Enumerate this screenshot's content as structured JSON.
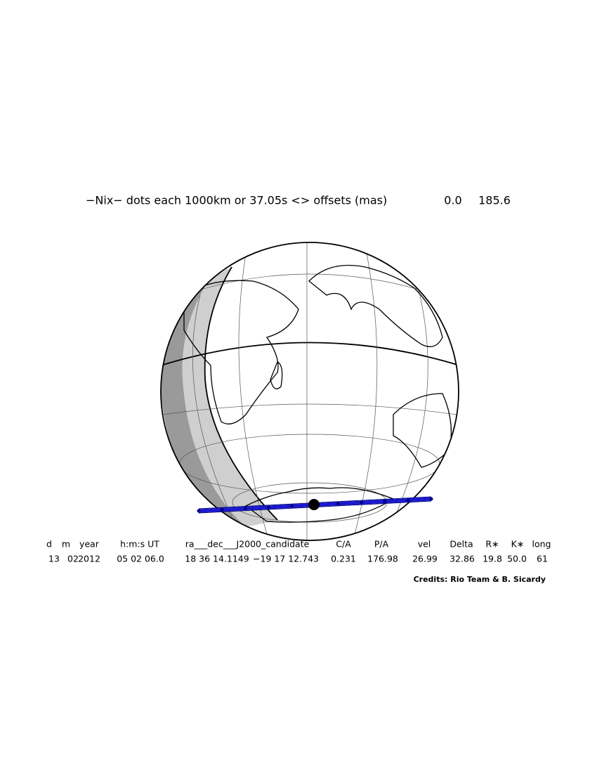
{
  "title": "−Nix− dots each 1000km or 37.05s <> offsets (mas)",
  "offsets": [
    "0.0",
    "185.6"
  ],
  "table": {
    "header": [
      "d",
      "m",
      "year",
      "h:m:s UT",
      "ra___dec___J2000_candidate",
      "C/A",
      "P/A",
      "vel",
      "Delta",
      "R∗",
      "K∗",
      "long"
    ],
    "values": [
      "13",
      "02",
      "2012",
      "05 02 06.0",
      "18 36 14.1149",
      "−19 17 12.743",
      "0.231",
      "176.98",
      "26.99",
      "32.86",
      "19.8",
      "50.0",
      "61"
    ]
  },
  "credits": "Credits: Rio Team & B. Sicardy"
}
